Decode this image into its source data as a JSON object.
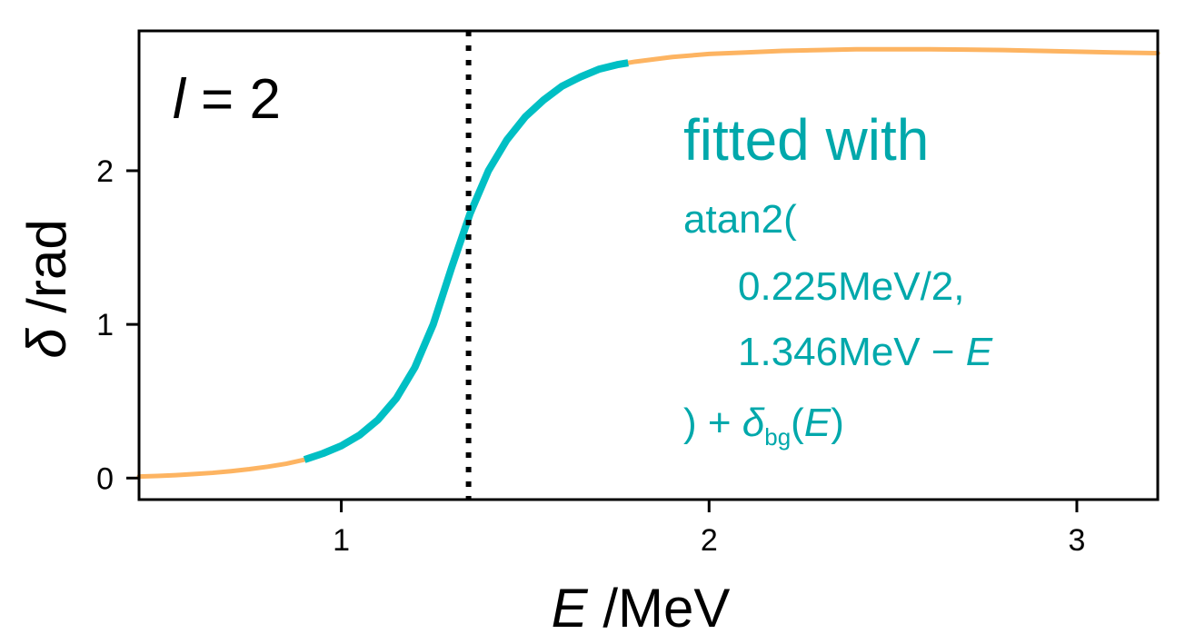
{
  "chart_data": {
    "type": "line",
    "xlabel_symbol": "E",
    "xlabel_unit": " /MeV",
    "ylabel_symbol": "δ",
    "ylabel_unit": " /rad",
    "xlim": [
      0.45,
      3.22
    ],
    "ylim": [
      -0.14,
      2.91
    ],
    "x_ticks": [
      1,
      2,
      3
    ],
    "y_ticks": [
      0,
      1,
      2
    ],
    "x_tick_labels": [
      "1",
      "2",
      "3"
    ],
    "y_tick_labels": [
      "0",
      "1",
      "2"
    ],
    "grid": false,
    "colors": {
      "full_curve": "#fdb462",
      "fit_range": "#00bfc4",
      "annotation": "#00a8ab",
      "reference_line": "#000000"
    },
    "series": [
      {
        "x": [
          0.45,
          0.5,
          0.55,
          0.6,
          0.65,
          0.7,
          0.75,
          0.8,
          0.85,
          0.9,
          0.95,
          1.0,
          1.05,
          1.1,
          1.15,
          1.2,
          1.25,
          1.3,
          1.35,
          1.4,
          1.45,
          1.5,
          1.55,
          1.6,
          1.65,
          1.7,
          1.75,
          1.8,
          1.9,
          2.0,
          2.1,
          2.2,
          2.3,
          2.4,
          2.5,
          2.6,
          2.7,
          2.8,
          2.9,
          3.0,
          3.1,
          3.22
        ],
        "values": [
          0.01,
          0.014,
          0.019,
          0.026,
          0.034,
          0.045,
          0.058,
          0.074,
          0.093,
          0.12,
          0.16,
          0.21,
          0.28,
          0.38,
          0.52,
          0.72,
          1.0,
          1.37,
          1.72,
          2.0,
          2.2,
          2.35,
          2.46,
          2.55,
          2.61,
          2.66,
          2.69,
          2.71,
          2.74,
          2.76,
          2.77,
          2.78,
          2.785,
          2.79,
          2.79,
          2.79,
          2.788,
          2.785,
          2.78,
          2.775,
          2.77,
          2.765
        ]
      }
    ],
    "fit_range": [
      0.9,
      1.78
    ],
    "reference_line_x": 1.346,
    "panel_label": {
      "symbol": "l",
      "rest": " = 2"
    },
    "annotation": {
      "heading": "fitted with",
      "line1": "atan2(",
      "line2": "0.225MeV/2,",
      "line3_prefix": "1.346MeV − ",
      "line3_symbol": "E",
      "line4_prefix": ") + ",
      "line4_symbol": "δ",
      "line4_sub": "bg",
      "line4_open": "(",
      "line4_arg": "E",
      "line4_close": ")"
    }
  }
}
